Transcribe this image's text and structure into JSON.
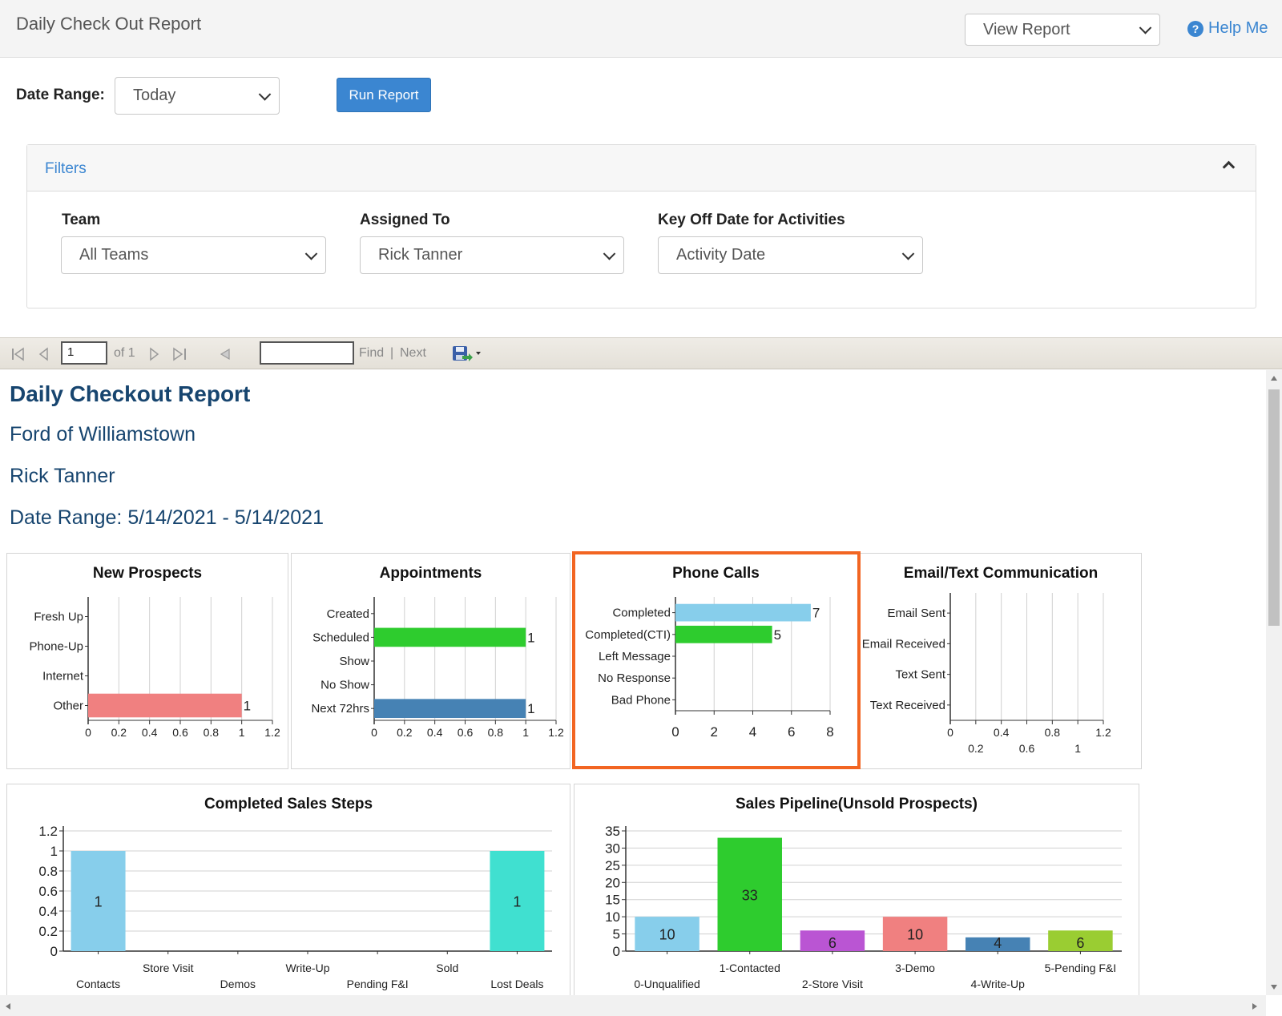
{
  "header": {
    "title": "Daily Check Out Report",
    "view_select": "View Report",
    "help_label": "Help Me",
    "help_icon": "question-circle-icon"
  },
  "controls": {
    "date_range_label": "Date Range:",
    "date_range_value": "Today",
    "run_button": "Run Report"
  },
  "filters": {
    "title": "Filters",
    "team_label": "Team",
    "team_value": "All Teams",
    "assigned_label": "Assigned To",
    "assigned_value": "Rick Tanner",
    "keyoff_label": "Key Off Date for Activities",
    "keyoff_value": "Activity Date"
  },
  "viewer_toolbar": {
    "page_value": "1",
    "of_pages": "of 1",
    "find": "Find",
    "separator": "|",
    "next": "Next"
  },
  "report": {
    "title": "Daily Checkout Report",
    "dealership": "Ford of Williamstown",
    "user": "Rick Tanner",
    "date_range": "Date Range: 5/14/2021 - 5/14/2021"
  },
  "colors": {
    "accent": "#3b86d1",
    "report_text": "#17456f",
    "highlight": "#f26522"
  },
  "chart_data": [
    {
      "type": "bar",
      "orientation": "horizontal",
      "title": "New Prospects",
      "categories": [
        "Fresh Up",
        "Phone-Up",
        "Internet",
        "Other"
      ],
      "values": [
        0,
        0,
        0,
        1
      ],
      "colors": [
        "#f08080",
        "#f08080",
        "#f08080",
        "#f08080"
      ],
      "labels": [
        "",
        "",
        "",
        "1"
      ],
      "xlim": [
        0,
        1.2
      ],
      "ticks": [
        "0",
        "0.2",
        "0.4",
        "0.6",
        "0.8",
        "1",
        "1.2"
      ]
    },
    {
      "type": "bar",
      "orientation": "horizontal",
      "title": "Appointments",
      "categories": [
        "Created",
        "Scheduled",
        "Show",
        "No Show",
        "Next 72hrs"
      ],
      "values": [
        0,
        1,
        0,
        0,
        1
      ],
      "colors": [
        "#2ecc2e",
        "#2ecc2e",
        "#2ecc2e",
        "#2ecc2e",
        "#4682b4"
      ],
      "labels": [
        "",
        "1",
        "",
        "",
        "1"
      ],
      "xlim": [
        0,
        1.2
      ],
      "ticks": [
        "0",
        "0.2",
        "0.4",
        "0.6",
        "0.8",
        "1",
        "1.2"
      ]
    },
    {
      "type": "bar",
      "orientation": "horizontal",
      "title": "Phone Calls",
      "categories": [
        "Completed",
        "Completed(CTI)",
        "Left Message",
        "No Response",
        "Bad Phone"
      ],
      "values": [
        7,
        5,
        0,
        0,
        0
      ],
      "colors": [
        "#87ceeb",
        "#2ecc2e",
        "#2ecc2e",
        "#2ecc2e",
        "#2ecc2e"
      ],
      "labels": [
        "7",
        "5",
        "",
        "",
        ""
      ],
      "xlim": [
        0,
        8
      ],
      "ticks": [
        "0",
        "2",
        "4",
        "6",
        "8"
      ]
    },
    {
      "type": "bar",
      "orientation": "horizontal",
      "title": "Email/Text Communication",
      "categories": [
        "Email Sent",
        "Email Received",
        "Text Sent",
        "Text Received"
      ],
      "values": [
        0,
        0,
        0,
        0
      ],
      "colors": [
        "#87ceeb",
        "#87ceeb",
        "#87ceeb",
        "#87ceeb"
      ],
      "labels": [
        "",
        "",
        "",
        ""
      ],
      "xlim": [
        0,
        1.2
      ],
      "ticks": [
        "0",
        "0.2",
        "0.4",
        "0.6",
        "0.8",
        "1",
        "1.2"
      ]
    },
    {
      "type": "bar",
      "orientation": "vertical",
      "title": "Completed Sales Steps",
      "categories": [
        "Contacts",
        "Store Visit",
        "Demos",
        "Write-Up",
        "Pending F&I",
        "Sold",
        "Lost Deals"
      ],
      "values": [
        1,
        0,
        0,
        0,
        0,
        0,
        1
      ],
      "colors": [
        "#87ceeb",
        "#87ceeb",
        "#87ceeb",
        "#87ceeb",
        "#87ceeb",
        "#87ceeb",
        "#40e0d0"
      ],
      "labels": [
        "1",
        "",
        "",
        "",
        "",
        "",
        "1"
      ],
      "ylim": [
        0,
        1.2
      ],
      "ticks": [
        "0",
        "0.2",
        "0.4",
        "0.6",
        "0.8",
        "1",
        "1.2"
      ]
    },
    {
      "type": "bar",
      "orientation": "vertical",
      "title": "Sales Pipeline(Unsold Prospects)",
      "categories": [
        "0-Unqualified",
        "1-Contacted",
        "2-Store Visit",
        "3-Demo",
        "4-Write-Up",
        "5-Pending F&I"
      ],
      "values": [
        10,
        33,
        6,
        10,
        4,
        6
      ],
      "colors": [
        "#87ceeb",
        "#2ecc2e",
        "#ba55d3",
        "#f08080",
        "#4682b4",
        "#9acd32"
      ],
      "labels": [
        "10",
        "33",
        "6",
        "10",
        "4",
        "6"
      ],
      "ylim": [
        0,
        35
      ],
      "ticks": [
        "0",
        "5",
        "10",
        "15",
        "20",
        "25",
        "30",
        "35"
      ]
    }
  ]
}
